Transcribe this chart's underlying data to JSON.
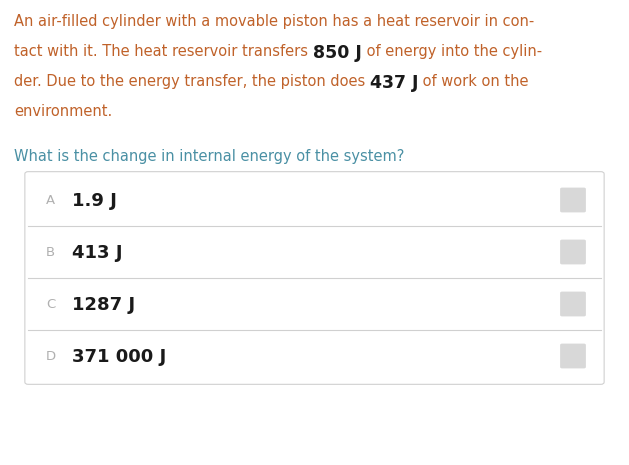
{
  "background_color": "#ffffff",
  "orange": "#c0622a",
  "question_color": "#4a90a4",
  "option_label_color": "#b0b0b0",
  "option_text_color": "#1a1a1a",
  "radio_color": "#d8d8d8",
  "box_border_color": "#d0d0d0",
  "paragraph_line1": "An air-filled cylinder with a movable piston has a heat reservoir in con-",
  "paragraph_line2_prefix": "tact with it. The heat reservoir transfers ",
  "paragraph_line2_bold": "850 J",
  "paragraph_line2_suffix": " of energy into the cylin-",
  "paragraph_line3_prefix": "der. Due to the energy transfer, the piston does ",
  "paragraph_line3_bold": "437 J",
  "paragraph_line3_suffix": " of work on the",
  "paragraph_line4": "environment.",
  "question": "What is the change in internal energy of the system?",
  "options": [
    {
      "label": "A",
      "text": "1.9 J"
    },
    {
      "label": "B",
      "text": "413 J"
    },
    {
      "label": "C",
      "text": "1287 J"
    },
    {
      "label": "D",
      "text": "371 000 J"
    }
  ],
  "figwidth": 6.29,
  "figheight": 4.65,
  "dpi": 100
}
